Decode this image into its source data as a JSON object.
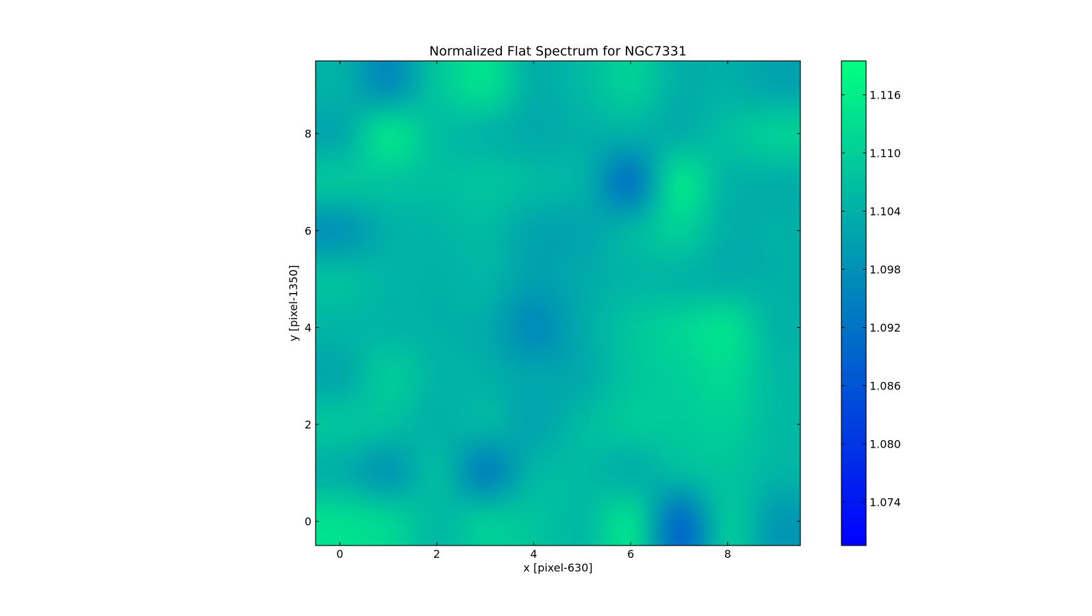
{
  "chart_data": {
    "type": "heatmap",
    "title": "Normalized Flat Spectrum for NGC7331",
    "xlabel": "x [pixel-630]",
    "ylabel": "y [pixel-1350]",
    "x": [
      0,
      1,
      2,
      3,
      4,
      5,
      6,
      7,
      8,
      9
    ],
    "y": [
      0,
      1,
      2,
      3,
      4,
      5,
      6,
      7,
      8,
      9
    ],
    "xlim": [
      -0.5,
      9.5
    ],
    "ylim": [
      -0.5,
      9.5
    ],
    "x_ticks": [
      0,
      2,
      4,
      6,
      8
    ],
    "y_ticks": [
      0,
      2,
      4,
      6,
      8
    ],
    "interpolation": "bicubic",
    "colormap": "winter",
    "colormap_stops": [
      "#0000ff",
      "#00ff80"
    ],
    "vmin": 1.0695,
    "vmax": 1.1195,
    "colorbar": {
      "ticks": [
        1.074,
        1.08,
        1.086,
        1.092,
        1.098,
        1.104,
        1.11,
        1.116
      ],
      "tick_labels": [
        "1.074",
        "1.080",
        "1.086",
        "1.092",
        "1.098",
        "1.104",
        "1.110",
        "1.116"
      ]
    },
    "values": [
      [
        1.113,
        1.111,
        1.106,
        1.109,
        1.108,
        1.106,
        1.112,
        1.092,
        1.108,
        1.1
      ],
      [
        1.104,
        1.1,
        1.106,
        1.096,
        1.105,
        1.106,
        1.104,
        1.106,
        1.108,
        1.105
      ],
      [
        1.108,
        1.107,
        1.104,
        1.105,
        1.102,
        1.106,
        1.109,
        1.109,
        1.11,
        1.106
      ],
      [
        1.103,
        1.109,
        1.105,
        1.104,
        1.102,
        1.103,
        1.108,
        1.11,
        1.112,
        1.106
      ],
      [
        1.105,
        1.105,
        1.104,
        1.103,
        1.097,
        1.103,
        1.108,
        1.111,
        1.113,
        1.105
      ],
      [
        1.107,
        1.105,
        1.104,
        1.105,
        1.101,
        1.103,
        1.105,
        1.105,
        1.104,
        1.104
      ],
      [
        1.099,
        1.104,
        1.105,
        1.106,
        1.102,
        1.102,
        1.105,
        1.11,
        1.104,
        1.104
      ],
      [
        1.108,
        1.108,
        1.107,
        1.108,
        1.106,
        1.104,
        1.094,
        1.113,
        1.105,
        1.104
      ],
      [
        1.103,
        1.113,
        1.107,
        1.105,
        1.103,
        1.104,
        1.104,
        1.104,
        1.107,
        1.11
      ],
      [
        1.104,
        1.098,
        1.108,
        1.113,
        1.104,
        1.106,
        1.11,
        1.104,
        1.104,
        1.102
      ]
    ]
  }
}
